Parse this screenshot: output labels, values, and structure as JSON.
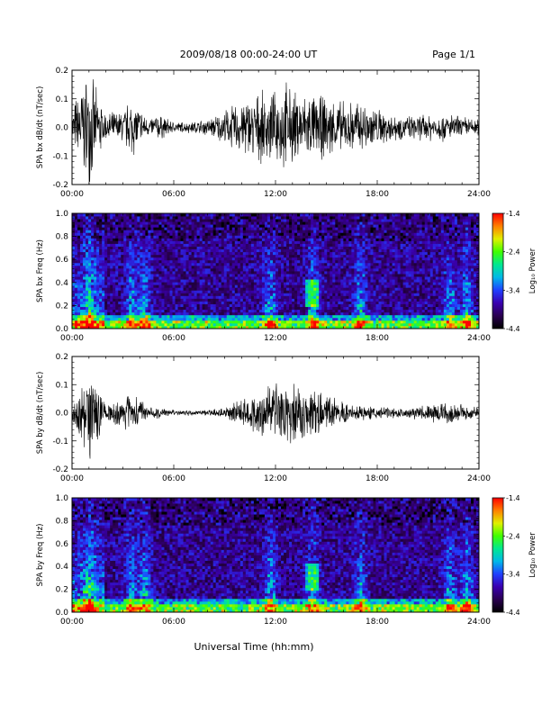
{
  "header": {
    "title": "2009/08/18  00:00-24:00 UT",
    "page": "Page 1/1"
  },
  "footer": {
    "xlabel": "Universal Time (hh:mm)"
  },
  "x_ticks": [
    "00:00",
    "06:00",
    "12:00",
    "18:00",
    "24:00"
  ],
  "colorbar": {
    "label": "Log₁₀ Power",
    "ticks": [
      "-1.4",
      "-2.4",
      "-3.4",
      "-4.4"
    ],
    "range": [
      -4.4,
      -1.4
    ],
    "colors": [
      "#000000",
      "#2a0050",
      "#3a00b0",
      "#2040ff",
      "#00b8e8",
      "#00e890",
      "#40ff00",
      "#e0f000",
      "#ff8000",
      "#ff0000"
    ]
  },
  "chart_data": [
    {
      "type": "line",
      "ylabel": "SPA bx dB/dt (nT/sec)",
      "xlim": [
        0,
        24
      ],
      "ylim": [
        -0.2,
        0.2
      ],
      "y_ticks": [
        "0.2",
        "0.1",
        "0.0",
        "-0.1",
        "-0.2"
      ],
      "envelope": {
        "x_hours": [
          0,
          0.5,
          1,
          1.5,
          2,
          3,
          3.5,
          4,
          4.5,
          5,
          6,
          7,
          8,
          9,
          10,
          11,
          12,
          12.5,
          13,
          14,
          15,
          16,
          17,
          18,
          19,
          20,
          21,
          22,
          23,
          24
        ],
        "amplitude": [
          0.06,
          0.16,
          0.2,
          0.12,
          0.05,
          0.06,
          0.11,
          0.07,
          0.03,
          0.05,
          0.02,
          0.02,
          0.03,
          0.06,
          0.1,
          0.12,
          0.12,
          0.17,
          0.13,
          0.12,
          0.11,
          0.09,
          0.1,
          0.07,
          0.05,
          0.04,
          0.05,
          0.05,
          0.04,
          0.03
        ]
      }
    },
    {
      "type": "heatmap",
      "ylabel": "SPA bx Freq (Hz)",
      "xlim": [
        0,
        24
      ],
      "ylim": [
        0,
        1.0
      ],
      "y_ticks": [
        "1.0",
        "0.8",
        "0.6",
        "0.4",
        "0.2",
        "0.0"
      ],
      "colorbar_label": "Log₁₀ Power",
      "zlim": [
        -4.4,
        -1.4
      ]
    },
    {
      "type": "line",
      "ylabel": "SPA by dB/dt (nT/sec)",
      "xlim": [
        0,
        24
      ],
      "ylim": [
        -0.2,
        0.2
      ],
      "y_ticks": [
        "0.2",
        "0.1",
        "0.0",
        "-0.1",
        "-0.2"
      ],
      "envelope": {
        "x_hours": [
          0,
          0.5,
          1,
          1.5,
          2,
          3,
          3.5,
          4,
          4.5,
          5,
          6,
          7,
          8,
          9,
          10,
          11,
          12,
          12.5,
          13,
          14,
          15,
          16,
          17,
          18,
          19,
          20,
          21,
          22,
          23,
          24
        ],
        "amplitude": [
          0.05,
          0.1,
          0.18,
          0.1,
          0.03,
          0.05,
          0.08,
          0.05,
          0.02,
          0.02,
          0.01,
          0.01,
          0.01,
          0.02,
          0.05,
          0.09,
          0.11,
          0.13,
          0.11,
          0.09,
          0.06,
          0.04,
          0.03,
          0.02,
          0.02,
          0.02,
          0.03,
          0.04,
          0.03,
          0.02
        ]
      }
    },
    {
      "type": "heatmap",
      "ylabel": "SPA by Freq (Hz)",
      "xlim": [
        0,
        24
      ],
      "ylim": [
        0,
        1.0
      ],
      "y_ticks": [
        "1.0",
        "0.8",
        "0.6",
        "0.4",
        "0.2",
        "0.0"
      ],
      "colorbar_label": "Log₁₀ Power",
      "zlim": [
        -4.4,
        -1.4
      ]
    }
  ]
}
